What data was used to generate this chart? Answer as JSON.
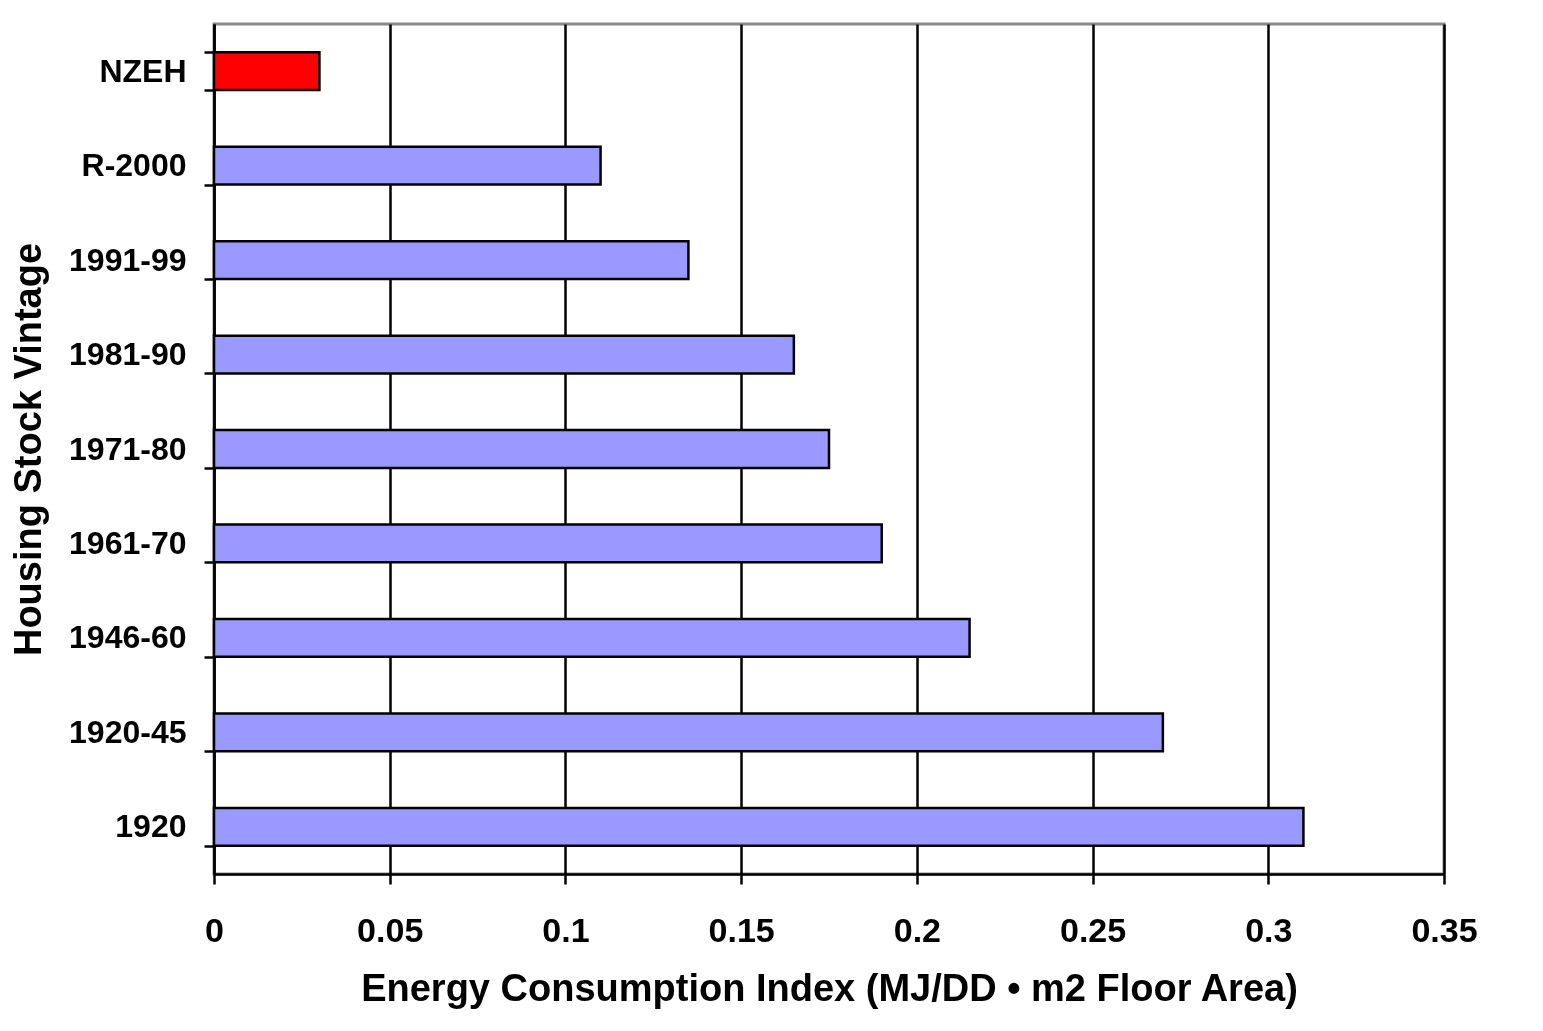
{
  "chart_data": {
    "type": "bar",
    "orientation": "horizontal",
    "xlabel": "Energy Consumption Index (MJ/DD • m2  Floor Area)",
    "ylabel": "Housing Stock Vintage",
    "categories": [
      "NZEH",
      "R-2000",
      "1991-99",
      "1981-90",
      "1971-80",
      "1961-70",
      "1946-60",
      "1920-45",
      "1920"
    ],
    "values": [
      0.03,
      0.11,
      0.135,
      0.165,
      0.175,
      0.19,
      0.215,
      0.27,
      0.31
    ],
    "colors": [
      "#ff0000",
      "#9999ff",
      "#9999ff",
      "#9999ff",
      "#9999ff",
      "#9999ff",
      "#9999ff",
      "#9999ff",
      "#9999ff"
    ],
    "xlim": [
      0,
      0.35
    ],
    "xticks": [
      0,
      0.05,
      0.1,
      0.15,
      0.2,
      0.25,
      0.3,
      0.35
    ],
    "grid": "x",
    "legend": false
  }
}
